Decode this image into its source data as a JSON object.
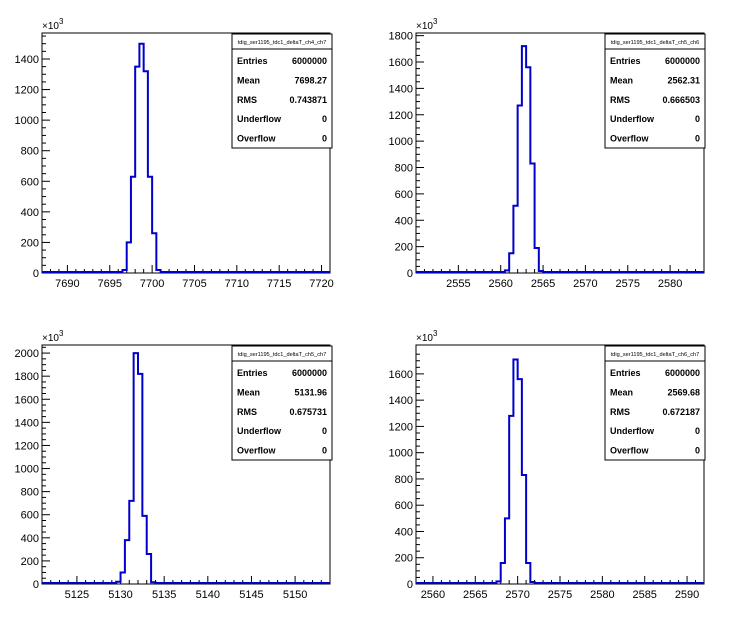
{
  "axis_exponent": {
    "base": "10",
    "power": "3"
  },
  "colors": {
    "histogram_line": "#0000cc",
    "frame": "#000000",
    "background": "#ffffff"
  },
  "chart_data": [
    {
      "type": "histogram",
      "title": "tdig_ser1195_tdc1_deltaT_ch4_ch7",
      "xlim": [
        7687,
        7721
      ],
      "ylim": [
        0,
        1570000
      ],
      "x_ticks": [
        "7690",
        "7695",
        "7700",
        "7705",
        "7710",
        "7715",
        "7720"
      ],
      "y_ticks": [
        "0",
        "200",
        "400",
        "600",
        "800",
        "1000",
        "1200",
        "1400"
      ],
      "y_tick_values": [
        0,
        200000,
        400000,
        600000,
        800000,
        1000000,
        1200000,
        1400000
      ],
      "x_tick_values": [
        7690,
        7695,
        7700,
        7705,
        7710,
        7715,
        7720
      ],
      "bin_width": 0.5,
      "bins_x": [
        7696.5,
        7697,
        7697.5,
        7698,
        7698.5,
        7699,
        7699.5,
        7700
      ],
      "bins_y": [
        20000,
        200000,
        630000,
        1350000,
        1500000,
        1320000,
        630000,
        260000
      ],
      "bins_y_tail": 20000,
      "stats": {
        "Entries": "6000000",
        "Mean": "7698.27",
        "RMS": "0.743871",
        "Underflow": "0",
        "Overflow": "0"
      }
    },
    {
      "type": "histogram",
      "title": "tdig_ser1195_tdc1_deltaT_ch5_ch6",
      "xlim": [
        2550,
        2584
      ],
      "ylim": [
        0,
        1820000
      ],
      "x_ticks": [
        "2555",
        "2560",
        "2565",
        "2570",
        "2575",
        "2580"
      ],
      "y_ticks": [
        "0",
        "200",
        "400",
        "600",
        "800",
        "1000",
        "1200",
        "1400",
        "1600",
        "1800"
      ],
      "y_tick_values": [
        0,
        200000,
        400000,
        600000,
        800000,
        1000000,
        1200000,
        1400000,
        1600000,
        1800000
      ],
      "x_tick_values": [
        2555,
        2560,
        2565,
        2570,
        2575,
        2580
      ],
      "bin_width": 0.5,
      "bins_x": [
        2560.5,
        2561,
        2561.5,
        2562,
        2562.5,
        2563,
        2563.5,
        2564
      ],
      "bins_y": [
        20000,
        150000,
        510000,
        1270000,
        1720000,
        1560000,
        830000,
        190000
      ],
      "bins_y_tail": 15000,
      "stats": {
        "Entries": "6000000",
        "Mean": "2562.31",
        "RMS": "0.666503",
        "Underflow": "0",
        "Overflow": "0"
      }
    },
    {
      "type": "histogram",
      "title": "tdig_ser1195_tdc1_deltaT_ch5_ch7",
      "xlim": [
        5121,
        5154
      ],
      "ylim": [
        0,
        2070000
      ],
      "x_ticks": [
        "5125",
        "5130",
        "5135",
        "5140",
        "5145",
        "5150"
      ],
      "y_ticks": [
        "0",
        "200",
        "400",
        "600",
        "800",
        "1000",
        "1200",
        "1400",
        "1600",
        "1800",
        "2000"
      ],
      "y_tick_values": [
        0,
        200000,
        400000,
        600000,
        800000,
        1000000,
        1200000,
        1400000,
        1600000,
        1800000,
        2000000
      ],
      "x_tick_values": [
        5125,
        5130,
        5135,
        5140,
        5145,
        5150
      ],
      "bin_width": 0.5,
      "bins_x": [
        5129.5,
        5130,
        5130.5,
        5131,
        5131.5,
        5132,
        5132.5,
        5133
      ],
      "bins_y": [
        20000,
        100000,
        380000,
        720000,
        2000000,
        1820000,
        590000,
        260000
      ],
      "bins_y_tail": 15000,
      "stats": {
        "Entries": "6000000",
        "Mean": "5131.96",
        "RMS": "0.675731",
        "Underflow": "0",
        "Overflow": "0"
      }
    },
    {
      "type": "histogram",
      "title": "tdig_ser1195_tdc1_deltaT_ch6_ch7",
      "xlim": [
        2558,
        2592
      ],
      "ylim": [
        0,
        1820000
      ],
      "x_ticks": [
        "2560",
        "2565",
        "2570",
        "2575",
        "2580",
        "2585",
        "2590"
      ],
      "y_ticks": [
        "0",
        "200",
        "400",
        "600",
        "800",
        "1000",
        "1200",
        "1400",
        "1600"
      ],
      "y_tick_values": [
        0,
        200000,
        400000,
        600000,
        800000,
        1000000,
        1200000,
        1400000,
        1600000
      ],
      "x_tick_values": [
        2560,
        2565,
        2570,
        2575,
        2580,
        2585,
        2590
      ],
      "bin_width": 0.5,
      "bins_x": [
        2567.5,
        2568,
        2568.5,
        2569,
        2569.5,
        2570,
        2570.5,
        2571
      ],
      "bins_y": [
        20000,
        160000,
        500000,
        1280000,
        1710000,
        1560000,
        830000,
        160000
      ],
      "bins_y_tail": 15000,
      "stats": {
        "Entries": "6000000",
        "Mean": "2569.68",
        "RMS": "0.672187",
        "Underflow": "0",
        "Overflow": "0"
      }
    }
  ]
}
